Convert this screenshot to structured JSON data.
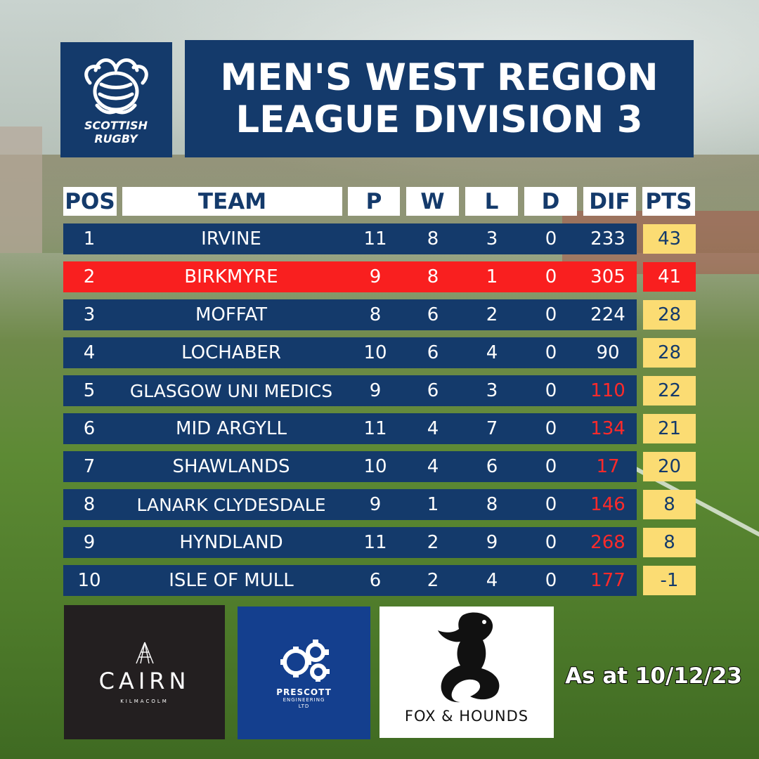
{
  "brand": {
    "logo_text_line1": "SCOTTISH",
    "logo_text_line2": "RUGBY",
    "primary_color": "#143a6b",
    "highlight_color": "#f91f1f",
    "points_color": "#fbdc73",
    "negative_color": "#ff2a2a"
  },
  "title": {
    "line1": "MEN'S WEST REGION",
    "line2": "LEAGUE DIVISION 3"
  },
  "table": {
    "headers": {
      "pos": "POS",
      "team": "TEAM",
      "p": "P",
      "w": "W",
      "l": "L",
      "d": "D",
      "dif": "DIF",
      "pts": "PTS"
    },
    "rows": [
      {
        "pos": "1",
        "team": "IRVINE",
        "p": "11",
        "w": "8",
        "l": "3",
        "d": "0",
        "dif": "233",
        "pts": "43",
        "highlight": false,
        "dif_red": false
      },
      {
        "pos": "2",
        "team": "BIRKMYRE",
        "p": "9",
        "w": "8",
        "l": "1",
        "d": "0",
        "dif": "305",
        "pts": "41",
        "highlight": true,
        "dif_red": false
      },
      {
        "pos": "3",
        "team": "MOFFAT",
        "p": "8",
        "w": "6",
        "l": "2",
        "d": "0",
        "dif": "224",
        "pts": "28",
        "highlight": false,
        "dif_red": false
      },
      {
        "pos": "4",
        "team": "LOCHABER",
        "p": "10",
        "w": "6",
        "l": "4",
        "d": "0",
        "dif": "90",
        "pts": "28",
        "highlight": false,
        "dif_red": false
      },
      {
        "pos": "5",
        "team": "GLASGOW UNI MEDICS",
        "p": "9",
        "w": "6",
        "l": "3",
        "d": "0",
        "dif": "110",
        "pts": "22",
        "highlight": false,
        "dif_red": true
      },
      {
        "pos": "6",
        "team": "MID ARGYLL",
        "p": "11",
        "w": "4",
        "l": "7",
        "d": "0",
        "dif": "134",
        "pts": "21",
        "highlight": false,
        "dif_red": true
      },
      {
        "pos": "7",
        "team": "SHAWLANDS",
        "p": "10",
        "w": "4",
        "l": "6",
        "d": "0",
        "dif": "17",
        "pts": "20",
        "highlight": false,
        "dif_red": true
      },
      {
        "pos": "8",
        "team": "LANARK CLYDESDALE",
        "p": "9",
        "w": "1",
        "l": "8",
        "d": "0",
        "dif": "146",
        "pts": "8",
        "highlight": false,
        "dif_red": true
      },
      {
        "pos": "9",
        "team": "HYNDLAND",
        "p": "11",
        "w": "2",
        "l": "9",
        "d": "0",
        "dif": "268",
        "pts": "8",
        "highlight": false,
        "dif_red": true
      },
      {
        "pos": "10",
        "team": "ISLE OF MULL",
        "p": "6",
        "w": "2",
        "l": "4",
        "d": "0",
        "dif": "177",
        "pts": "-1",
        "highlight": false,
        "dif_red": true
      }
    ]
  },
  "sponsors": {
    "cairn": {
      "name": "CAIRN",
      "sub": "KILMACOLM",
      "icon": "cairn-logo-icon"
    },
    "prescott": {
      "name": "PRESCOTT",
      "sub_line1": "ENGINEERING",
      "sub_line2": "LTD",
      "icon": "gears-icon"
    },
    "fox": {
      "name": "FOX & HOUNDS",
      "icon": "fox-dog-silhouette-icon"
    }
  },
  "as_at": "As at 10/12/23"
}
